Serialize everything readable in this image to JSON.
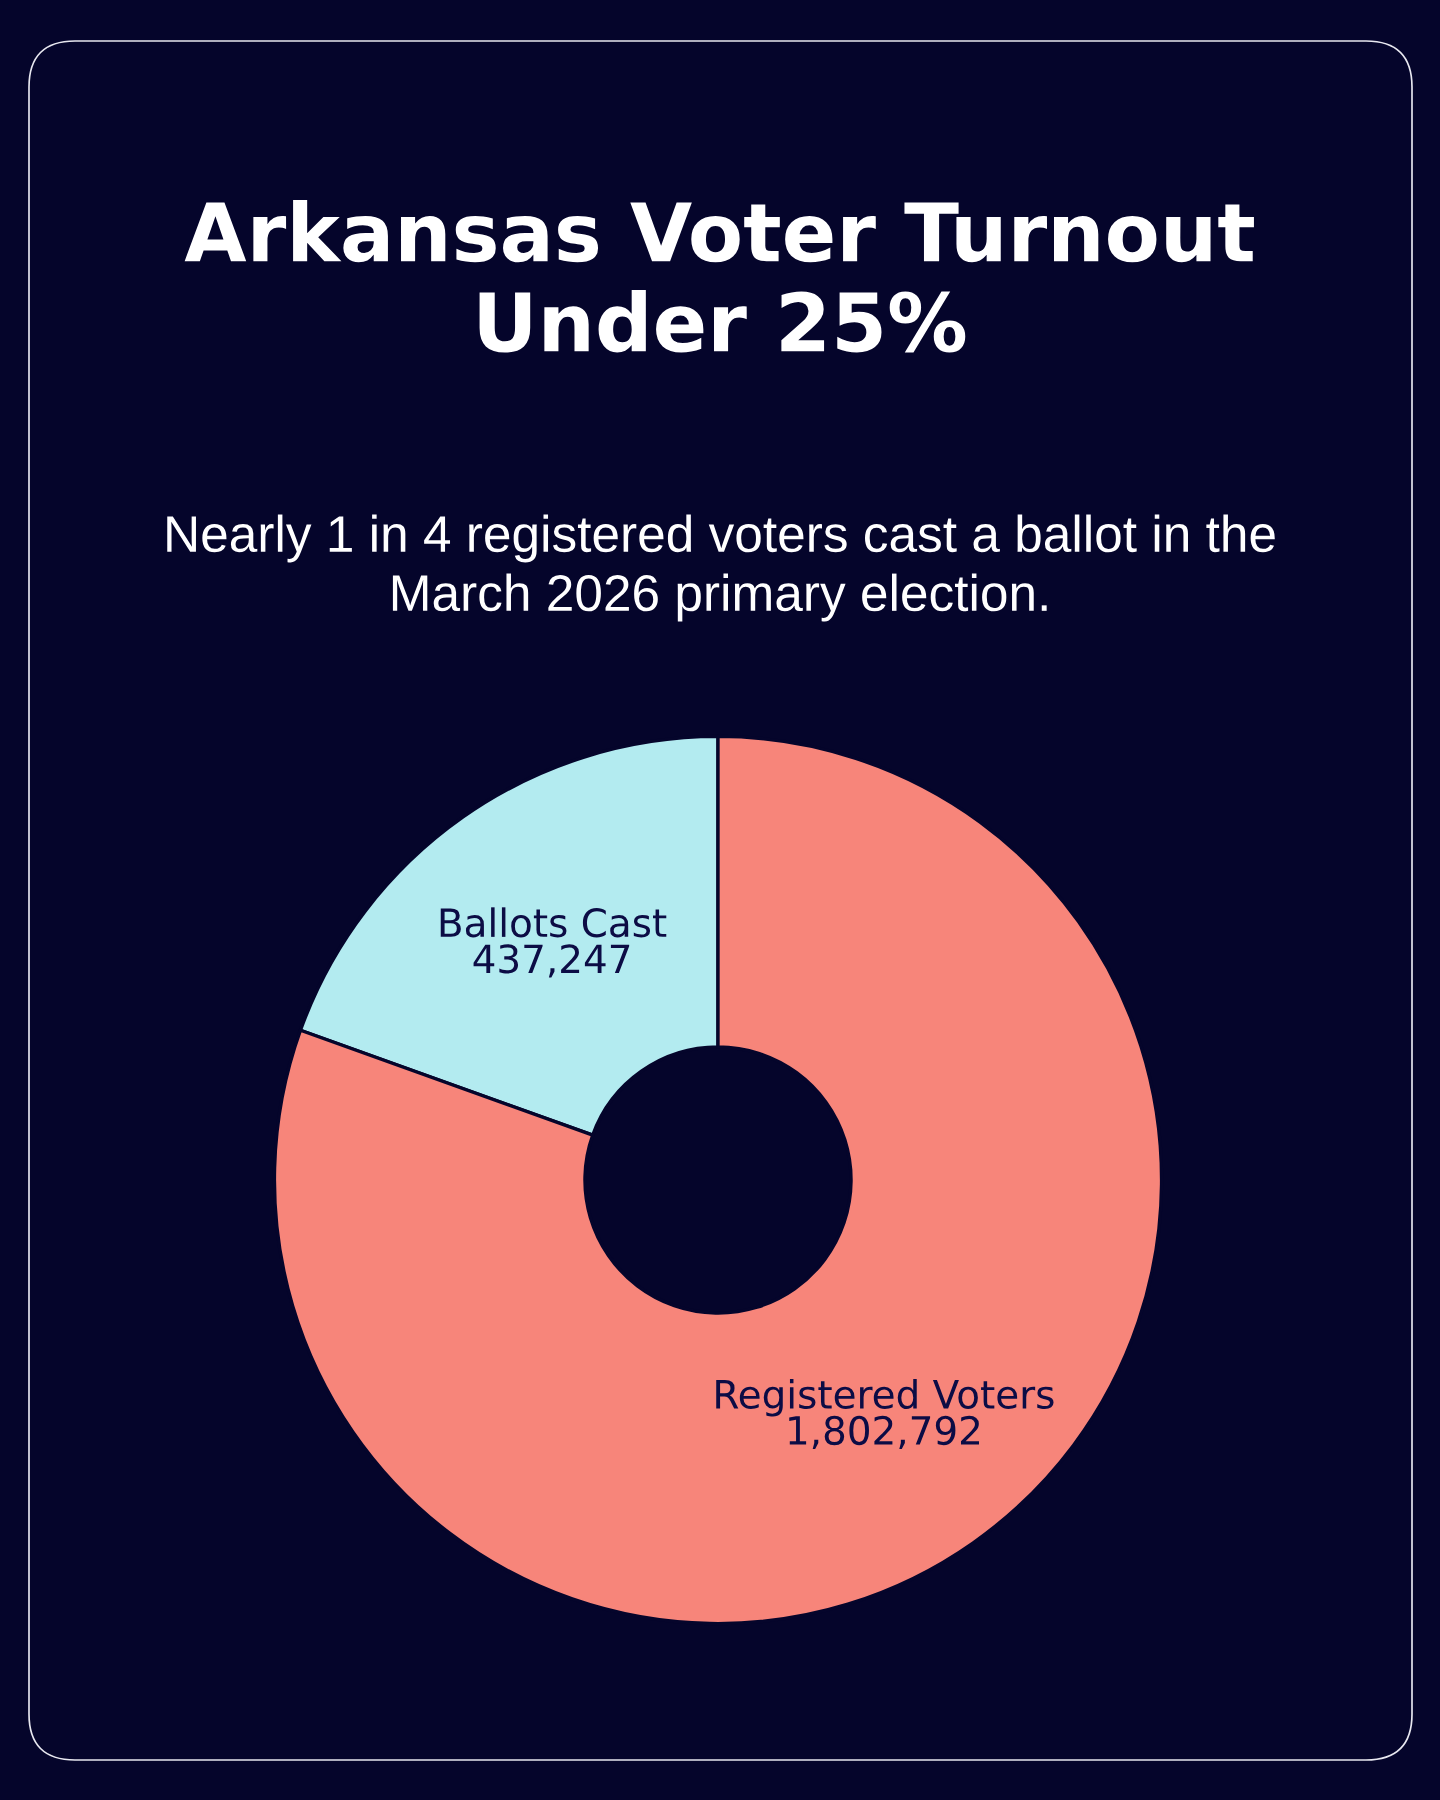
{
  "chart_data": {
    "type": "donut",
    "title": "Arkansas Voter Turnout\nUnder 25%",
    "subtitle": "Nearly 1 in 4 registered voters cast a ballot in the\nMarch 2026 primary election.",
    "categories": [
      "Ballots Cast",
      "Registered Voters"
    ],
    "values": [
      437247,
      1802792
    ],
    "colors": [
      "#b3ebf0",
      "#f7857a"
    ],
    "value_labels": [
      "437,247",
      "1,802,792"
    ]
  }
}
